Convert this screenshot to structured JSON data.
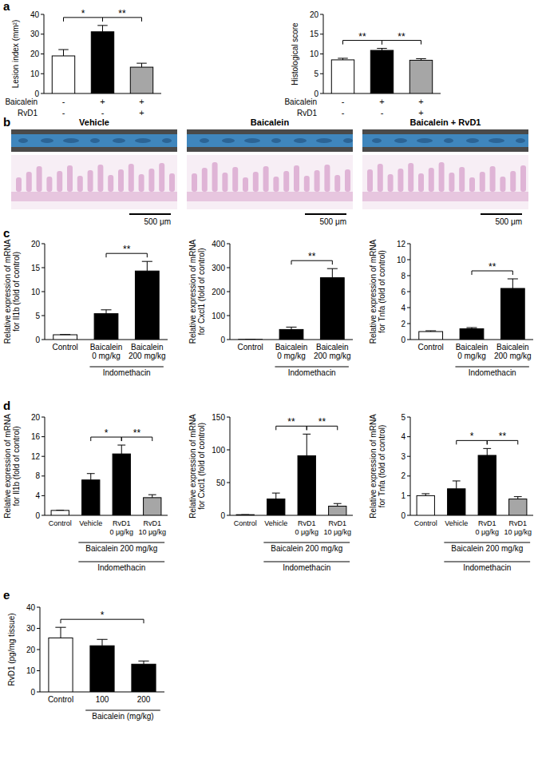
{
  "chart_data": [
    {
      "panel_label": "a",
      "type": "bar",
      "ylabel": "Lesion index (mm²)",
      "categories": [
        null,
        null,
        null
      ],
      "condition_rows": [
        {
          "label": "Baicalein",
          "values": [
            "-",
            "+",
            "+"
          ]
        },
        {
          "label": "RvD1",
          "values": [
            "-",
            "-",
            "+"
          ]
        }
      ],
      "values": [
        19,
        31.2,
        13.3
      ],
      "errors": [
        3.2,
        3.2,
        2
      ],
      "colors": [
        "#ffffff",
        "#000000",
        "#a6a6a6"
      ],
      "ylim": [
        0,
        40
      ],
      "yticks": [
        0,
        10,
        20,
        30,
        40
      ],
      "significance": [
        {
          "from": 0,
          "to": 1,
          "label": "*"
        },
        {
          "from": 1,
          "to": 2,
          "label": "**"
        }
      ]
    },
    {
      "type": "bar",
      "ylabel": "Histological score",
      "categories": [
        null,
        null,
        null
      ],
      "condition_rows": [
        {
          "label": "Baicalein",
          "values": [
            "-",
            "+",
            "+"
          ]
        },
        {
          "label": "RvD1",
          "values": [
            "-",
            "-",
            "+"
          ]
        }
      ],
      "values": [
        8.5,
        10.9,
        8.4
      ],
      "errors": [
        0.4,
        0.5,
        0.4
      ],
      "colors": [
        "#ffffff",
        "#000000",
        "#a6a6a6"
      ],
      "ylim": [
        0,
        20
      ],
      "yticks": [
        0,
        5,
        10,
        15,
        20
      ],
      "significance": [
        {
          "from": 0,
          "to": 1,
          "label": "**"
        },
        {
          "from": 1,
          "to": 2,
          "label": "**"
        }
      ]
    },
    {
      "panel_label": "c",
      "type": "bar",
      "ylabel": "Relative expression of mRNA\nfor Il1b (fold of control)",
      "categories": [
        "Control",
        "Baicalein\n0 mg/kg",
        "Baicalein\n200 mg/kg"
      ],
      "groups": [
        {
          "label": "Indomethacin",
          "from": 1,
          "to": 2
        }
      ],
      "values": [
        1,
        5.4,
        14.3
      ],
      "errors": [
        0.05,
        0.8,
        2
      ],
      "colors": [
        "#ffffff",
        "#000000",
        "#000000"
      ],
      "ylim": [
        0,
        20
      ],
      "yticks": [
        0,
        5,
        10,
        15,
        20
      ],
      "significance": [
        {
          "from": 1,
          "to": 2,
          "label": "**"
        }
      ]
    },
    {
      "type": "bar",
      "ylabel": "Relative expression of mRNA\nfor Cxcl1 (fold of control)",
      "categories": [
        "Control",
        "Baicalein\n0 mg/kg",
        "Baicalein\n200 mg/kg"
      ],
      "groups": [
        {
          "label": "Indomethacin",
          "from": 1,
          "to": 2
        }
      ],
      "values": [
        1,
        42,
        258
      ],
      "errors": [
        0,
        10,
        38
      ],
      "colors": [
        "#ffffff",
        "#000000",
        "#000000"
      ],
      "ylim": [
        0,
        400
      ],
      "yticks": [
        0,
        100,
        200,
        300,
        400
      ],
      "significance": [
        {
          "from": 1,
          "to": 2,
          "label": "**"
        }
      ]
    },
    {
      "type": "bar",
      "ylabel": "Relative expression of mRNA\nfor Tnfa (fold of control)",
      "categories": [
        "Control",
        "Baicalein\n0 mg/kg",
        "Baicalein\n200 mg/kg"
      ],
      "groups": [
        {
          "label": "Indomethacin",
          "from": 1,
          "to": 2
        }
      ],
      "values": [
        1,
        1.35,
        6.4
      ],
      "errors": [
        0.1,
        0.15,
        1.2
      ],
      "colors": [
        "#ffffff",
        "#000000",
        "#000000"
      ],
      "ylim": [
        0,
        12
      ],
      "yticks": [
        0,
        2,
        4,
        6,
        8,
        10,
        12
      ],
      "significance": [
        {
          "from": 1,
          "to": 2,
          "label": "**"
        }
      ]
    },
    {
      "panel_label": "d",
      "type": "bar",
      "ylabel": "Relative expression of mRNA\nfor Il1b (fold of control)",
      "categories": [
        "Control",
        "Vehicle",
        "RvD1\n0 μg/kg",
        "RvD1\n10 μg/kg"
      ],
      "groups": [
        {
          "label": "Baicalein 200 mg/kg",
          "from": 1,
          "to": 3
        },
        {
          "label": "Indomethacin",
          "from": 1,
          "to": 3
        }
      ],
      "values": [
        1,
        7.2,
        12.5,
        3.6
      ],
      "errors": [
        0.05,
        1.3,
        1.8,
        0.6
      ],
      "colors": [
        "#ffffff",
        "#000000",
        "#000000",
        "#a6a6a6"
      ],
      "ylim": [
        0,
        20
      ],
      "yticks": [
        0,
        4,
        8,
        12,
        16,
        20
      ],
      "significance": [
        {
          "from": 1,
          "to": 2,
          "label": "*"
        },
        {
          "from": 2,
          "to": 3,
          "label": "**"
        }
      ]
    },
    {
      "type": "bar",
      "ylabel": "Relative expression of mRNA\nfor Cxcl1 (fold of control)",
      "categories": [
        "Control",
        "Vehicle",
        "RvD1\n0 μg/kg",
        "RvD1\n10 μg/kg"
      ],
      "groups": [
        {
          "label": "Baicalein 200 mg/kg",
          "from": 1,
          "to": 3
        },
        {
          "label": "Indomethacin",
          "from": 1,
          "to": 3
        }
      ],
      "values": [
        1,
        25,
        91,
        14
      ],
      "errors": [
        0,
        9,
        33,
        4
      ],
      "colors": [
        "#ffffff",
        "#000000",
        "#000000",
        "#a6a6a6"
      ],
      "ylim": [
        0,
        150
      ],
      "yticks": [
        0,
        50,
        100,
        150
      ],
      "significance": [
        {
          "from": 1,
          "to": 2,
          "label": "**"
        },
        {
          "from": 2,
          "to": 3,
          "label": "**"
        }
      ]
    },
    {
      "type": "bar",
      "ylabel": "Relative expression of mRNA\nfor Tnfa (fold of control)",
      "categories": [
        "Control",
        "Vehicle",
        "RvD1\n0 μg/kg",
        "RvD1\n10 μg/kg"
      ],
      "groups": [
        {
          "label": "Baicalein 200 mg/kg",
          "from": 1,
          "to": 3
        },
        {
          "label": "Indomethacin",
          "from": 1,
          "to": 3
        }
      ],
      "values": [
        1,
        1.35,
        3.05,
        0.83
      ],
      "errors": [
        0.1,
        0.4,
        0.35,
        0.12
      ],
      "colors": [
        "#ffffff",
        "#000000",
        "#000000",
        "#a6a6a6"
      ],
      "ylim": [
        0,
        5
      ],
      "yticks": [
        0,
        1,
        2,
        3,
        4,
        5
      ],
      "significance": [
        {
          "from": 1,
          "to": 2,
          "label": "*"
        },
        {
          "from": 2,
          "to": 3,
          "label": "**"
        }
      ]
    },
    {
      "panel_label": "e",
      "type": "bar",
      "ylabel": "RvD1 (pg/mg tissue)",
      "categories": [
        "Control",
        "100",
        "200"
      ],
      "groups": [
        {
          "label": "Baicalein (mg/kg)",
          "from": 1,
          "to": 2
        }
      ],
      "values": [
        25.5,
        21.8,
        13.1
      ],
      "errors": [
        5,
        3,
        1.5
      ],
      "colors": [
        "#ffffff",
        "#000000",
        "#000000"
      ],
      "ylim": [
        0,
        40
      ],
      "yticks": [
        0,
        10,
        20,
        30,
        40
      ],
      "significance": [
        {
          "from": 0,
          "to": 2,
          "label": "*"
        }
      ]
    }
  ],
  "micrographs": {
    "panel_label": "b",
    "columns": [
      {
        "title": "Vehicle",
        "scale_bar": "500 μm"
      },
      {
        "title": "Baicalein",
        "scale_bar": "500 μm"
      },
      {
        "title": "Baicalein + RvD1",
        "scale_bar": "500 μm"
      }
    ]
  }
}
